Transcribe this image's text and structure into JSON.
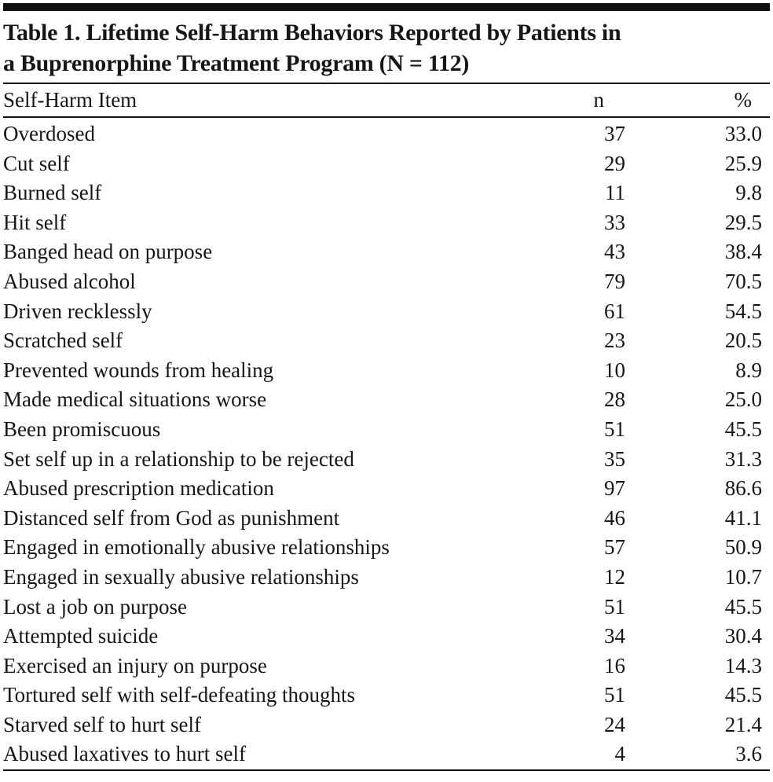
{
  "table": {
    "title_lines": [
      "Table 1. Lifetime Self-Harm Behaviors Reported by Patients in",
      "a Buprenorphine Treatment Program (N = 112)"
    ],
    "columns": [
      "Self-Harm Item",
      "n",
      "%"
    ],
    "rows": [
      {
        "item": "Overdosed",
        "n": "37",
        "pct": "33.0"
      },
      {
        "item": "Cut self",
        "n": "29",
        "pct": "25.9"
      },
      {
        "item": "Burned self",
        "n": "11",
        "pct": "9.8"
      },
      {
        "item": "Hit self",
        "n": "33",
        "pct": "29.5"
      },
      {
        "item": "Banged head on purpose",
        "n": "43",
        "pct": "38.4"
      },
      {
        "item": "Abused alcohol",
        "n": "79",
        "pct": "70.5"
      },
      {
        "item": "Driven recklessly",
        "n": "61",
        "pct": "54.5"
      },
      {
        "item": "Scratched self",
        "n": "23",
        "pct": "20.5"
      },
      {
        "item": "Prevented wounds from healing",
        "n": "10",
        "pct": "8.9"
      },
      {
        "item": "Made medical situations worse",
        "n": "28",
        "pct": "25.0"
      },
      {
        "item": "Been promiscuous",
        "n": "51",
        "pct": "45.5"
      },
      {
        "item": "Set self up in a relationship to be rejected",
        "n": "35",
        "pct": "31.3"
      },
      {
        "item": "Abused prescription medication",
        "n": "97",
        "pct": "86.6"
      },
      {
        "item": "Distanced self from God as punishment",
        "n": "46",
        "pct": "41.1"
      },
      {
        "item": "Engaged in emotionally abusive relationships",
        "n": "57",
        "pct": "50.9"
      },
      {
        "item": "Engaged in sexually abusive relationships",
        "n": "12",
        "pct": "10.7"
      },
      {
        "item": "Lost a job on purpose",
        "n": "51",
        "pct": "45.5"
      },
      {
        "item": "Attempted suicide",
        "n": "34",
        "pct": "30.4"
      },
      {
        "item": "Exercised an injury on purpose",
        "n": "16",
        "pct": "14.3"
      },
      {
        "item": "Tortured self with self-defeating thoughts",
        "n": "51",
        "pct": "45.5"
      },
      {
        "item": "Starved self to hurt self",
        "n": "24",
        "pct": "21.4"
      },
      {
        "item": "Abused laxatives to hurt self",
        "n": "4",
        "pct": "3.6"
      }
    ]
  },
  "colors": {
    "text": "#161616",
    "rule": "#111111",
    "background": "#ffffff"
  }
}
